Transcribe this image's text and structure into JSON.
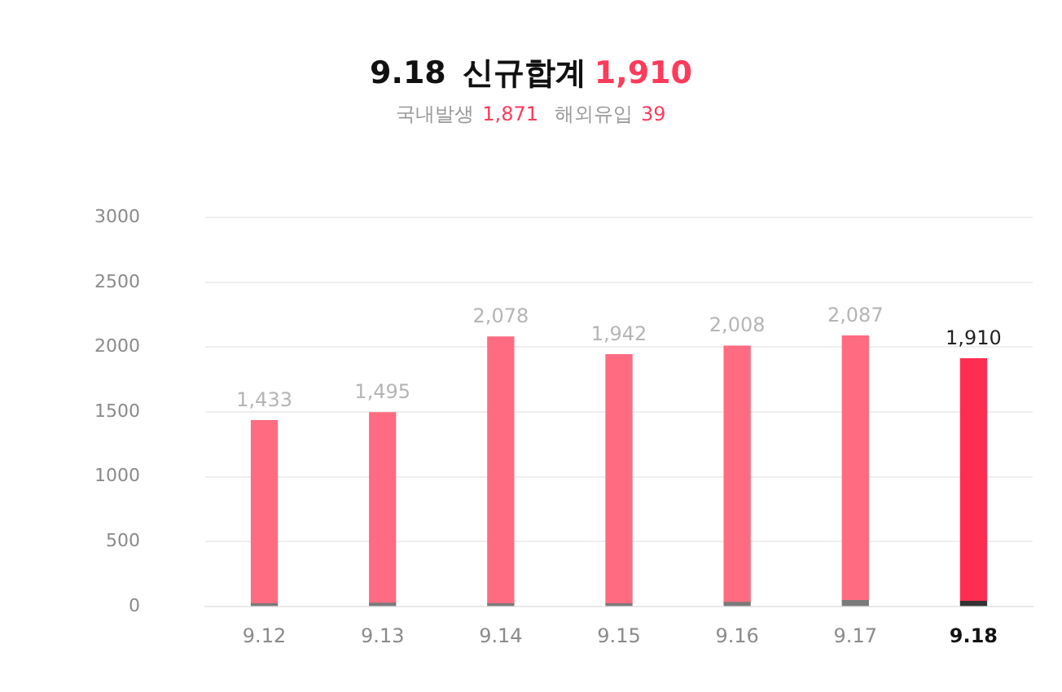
{
  "chart_data": {
    "type": "bar",
    "title": "9.18 신규합계 1,910",
    "subtitle": "국내발생 1,871 해외유입 39",
    "categories": [
      "9.12",
      "9.13",
      "9.14",
      "9.15",
      "9.16",
      "9.17",
      "9.18"
    ],
    "stacked": true,
    "series": [
      {
        "colors": [
          "#7a7a7a",
          "#7a7a7a",
          "#7a7a7a",
          "#7a7a7a",
          "#7a7a7a",
          "#7a7a7a",
          "#333333"
        ],
        "values": [
          20,
          25,
          20,
          20,
          30,
          45,
          39
        ]
      },
      {
        "colors": [
          "#ff6b81",
          "#ff6b81",
          "#ff6b81",
          "#ff6b81",
          "#ff6b81",
          "#ff6b81",
          "#ff2e50"
        ],
        "values": [
          1413,
          1470,
          2058,
          1922,
          1978,
          2042,
          1871
        ]
      }
    ],
    "totals": [
      "1,433",
      "1,495",
      "2,078",
      "1,942",
      "2,008",
      "2,087",
      "1,910"
    ],
    "ylim": [
      0,
      3000
    ],
    "yticks": [
      0,
      500,
      1000,
      1500,
      2000,
      2500,
      3000
    ],
    "grid": "y",
    "legend": false
  }
}
